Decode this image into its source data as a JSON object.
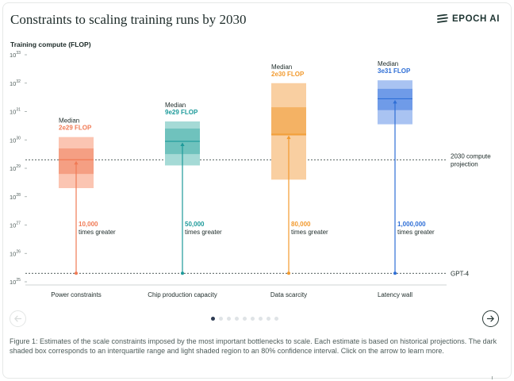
{
  "title": "Constraints to scaling training runs by 2030",
  "brand": {
    "name": "EPOCH AI"
  },
  "caption": "Figure 1: Estimates of the scale constraints imposed by the most important bottlenecks to scale. Each estimate is based on historical projections. The dark shaded box corresponds to an interquartile range and light shaded region to an 80% confidence interval. Click on the arrow to learn more.",
  "carousel": {
    "dot_count": 9,
    "active_index": 0
  },
  "chart_data": {
    "type": "box",
    "ylabel": "Training compute (FLOP)",
    "yscale": "log10",
    "ylim_log10": [
      25,
      33
    ],
    "yticks": [
      {
        "base": "10",
        "exp": "25"
      },
      {
        "base": "10",
        "exp": "26"
      },
      {
        "base": "10",
        "exp": "27"
      },
      {
        "base": "10",
        "exp": "28"
      },
      {
        "base": "10",
        "exp": "29"
      },
      {
        "base": "10",
        "exp": "30"
      },
      {
        "base": "10",
        "exp": "31"
      },
      {
        "base": "10",
        "exp": "32"
      },
      {
        "base": "10",
        "exp": "33"
      }
    ],
    "reference_lines": [
      {
        "label": "2030 compute",
        "label2": "projection",
        "log10": 29.3
      },
      {
        "label": "GPT-4",
        "log10": 25.3
      }
    ],
    "categories": [
      "Power constraints",
      "Chip production capacity",
      "Data scarcity",
      "Latency wall"
    ],
    "series": [
      {
        "category": "Power constraints",
        "median_label": "Median",
        "median_text": "2e29 FLOP",
        "median": 29.3,
        "q1": 28.8,
        "q3": 29.7,
        "p10": 28.3,
        "p90": 30.1,
        "multiplier": "10,000",
        "multiplier_suffix": "times greater",
        "color": "#f07a55",
        "light": "#fbc5b2",
        "mid": "#f59f83"
      },
      {
        "category": "Chip production capacity",
        "median_label": "Median",
        "median_text": "9e29 FLOP",
        "median": 29.95,
        "q1": 29.5,
        "q3": 30.4,
        "p10": 29.1,
        "p90": 30.65,
        "multiplier": "50,000",
        "multiplier_suffix": "times greater",
        "color": "#1d9a9a",
        "light": "#a5dad6",
        "mid": "#6fc2bd"
      },
      {
        "category": "Data scarcity",
        "median_label": "Median",
        "median_text": "2e30 FLOP",
        "median": 30.2,
        "q1": 30.15,
        "q3": 31.15,
        "p10": 28.6,
        "p90": 32.0,
        "multiplier": "80,000",
        "multiplier_suffix": "times greater",
        "color": "#f29a2e",
        "light": "#f9cfa1",
        "mid": "#f4b264"
      },
      {
        "category": "Latency wall",
        "median_label": "Median",
        "median_text": "3e31 FLOP",
        "median": 31.45,
        "q1": 31.05,
        "q3": 31.8,
        "p10": 30.55,
        "p90": 32.1,
        "multiplier": "1,000,000",
        "multiplier_suffix": "times greater",
        "color": "#2f6fd6",
        "light": "#a9c3f2",
        "mid": "#6f9be8"
      }
    ]
  }
}
